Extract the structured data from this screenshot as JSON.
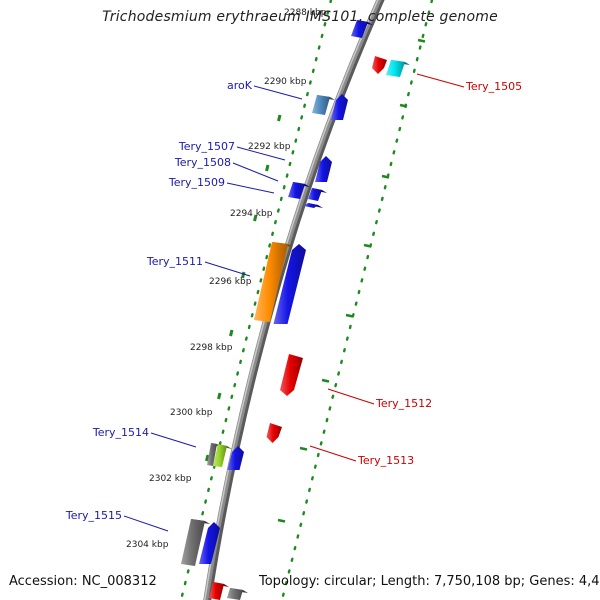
{
  "title": "Trichodesmium erythraeum IMS101, complete genome",
  "footer": {
    "accession": "Accession: NC_008312",
    "summary": "Topology: circular; Length: 7,750,108 bp; Genes: 4,498"
  },
  "tick_labels": [
    "2288 kbp",
    "2290 kbp",
    "2292 kbp",
    "2294 kbp",
    "2296 kbp",
    "2298 kbp",
    "2300 kbp",
    "2302 kbp",
    "2304 kbp"
  ],
  "gene_labels": [
    {
      "text": "aroK",
      "strand": "forward"
    },
    {
      "text": "Tery_1507",
      "strand": "forward"
    },
    {
      "text": "Tery_1508",
      "strand": "forward"
    },
    {
      "text": "Tery_1509",
      "strand": "forward"
    },
    {
      "text": "Tery_1511",
      "strand": "forward"
    },
    {
      "text": "Tery_1514",
      "strand": "forward"
    },
    {
      "text": "Tery_1515",
      "strand": "forward"
    },
    {
      "text": "Tery_1505",
      "strand": "reverse"
    },
    {
      "text": "Tery_1512",
      "strand": "reverse"
    },
    {
      "text": "Tery_1513",
      "strand": "reverse"
    }
  ],
  "colors": {
    "forward_label": "#1a1ab0",
    "reverse_label": "#cc0000",
    "forward_gene": "#1414e6",
    "reverse_gene": "#e60000",
    "orange_gene": "#ff8c00",
    "cyan_gene": "#00e5ee",
    "steelblue_gene": "#4f8bc0",
    "green_gene": "#9ad62a",
    "gray_gene": "#707070",
    "backbone": "#8c8c8c",
    "tick_dots": "#1e8a1e"
  }
}
